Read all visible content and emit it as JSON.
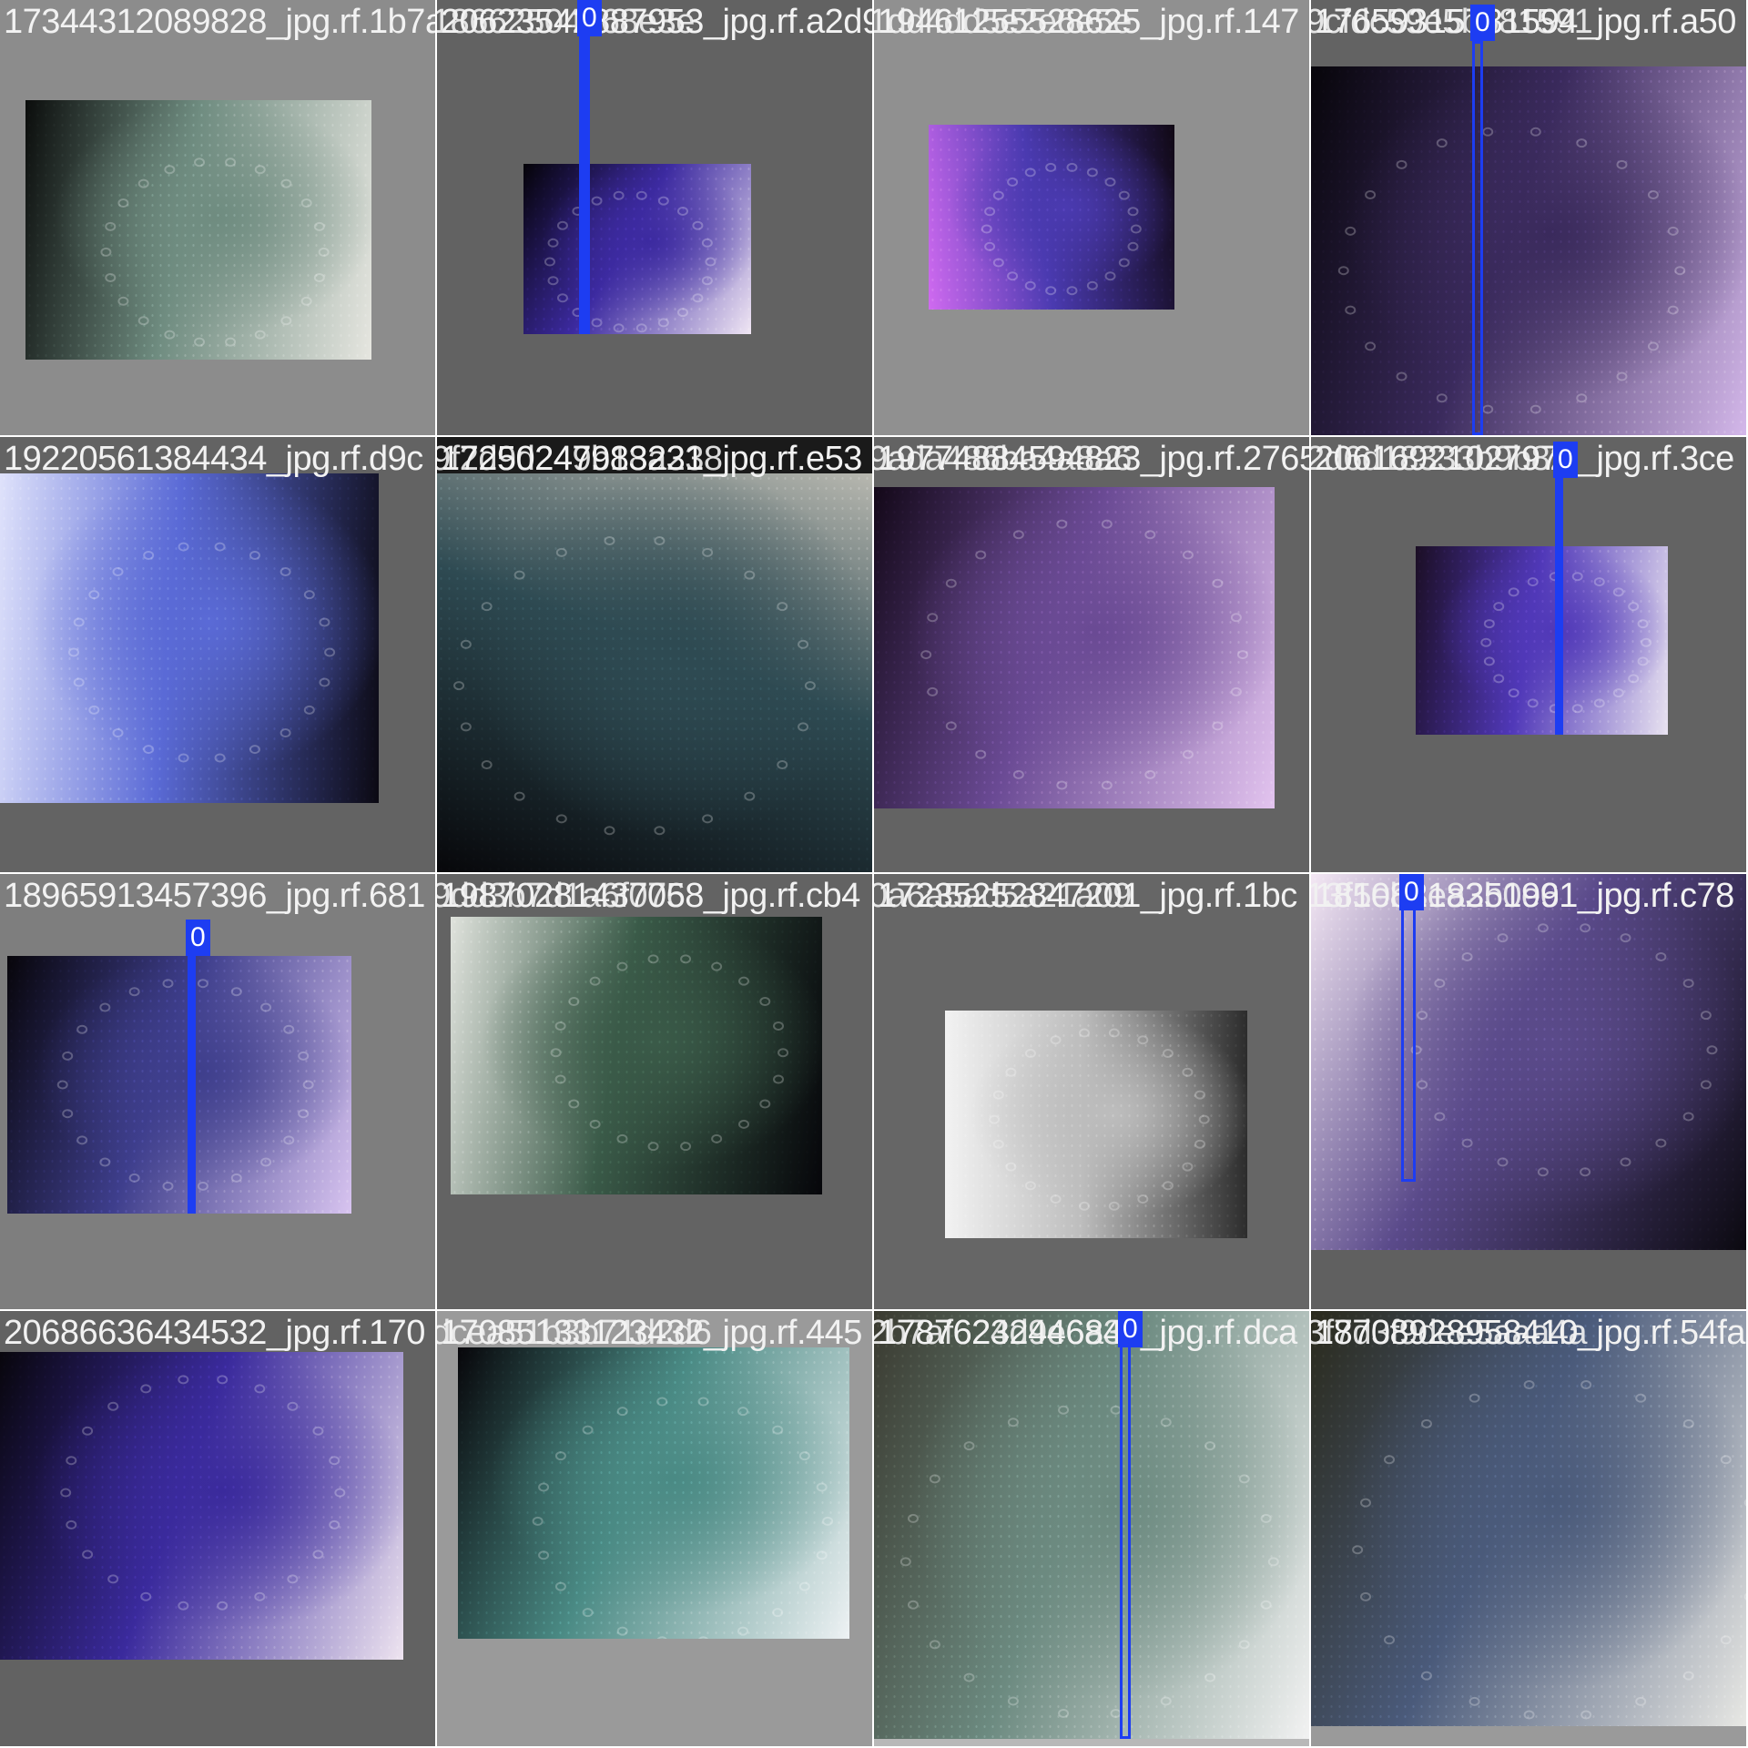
{
  "grid": {
    "columns": 4,
    "rows": 4,
    "tiles": [
      {
        "filename": "17344312089828_jpg.rf.1b7a",
        "overlay_filename": "",
        "background": "#8c8c8c",
        "palette": [
          "#0b0d0c",
          "#6f8c80",
          "#e6e6e0"
        ],
        "detections": []
      },
      {
        "filename": "20623542887953_jpg.rf.a2d9",
        "overlay_filename": "18662504268e3e",
        "background": "#626262",
        "palette": [
          "#050308",
          "#3c2aa0",
          "#f0e6f4"
        ],
        "detections": [
          {
            "label": "0"
          }
        ]
      },
      {
        "filename": "19461255528625_jpg.rf.147",
        "overlay_filename": "1dd4dd5e2e6e5e",
        "background": "#909090",
        "palette": [
          "#d06af0",
          "#4a3ab0",
          "#100814"
        ],
        "detections": []
      },
      {
        "filename": "17659315781594_jpg.rf.a50",
        "overlay_filename": "9cfdc59e5b581591",
        "background": "#636363",
        "palette": [
          "#07050a",
          "#3a2a5c",
          "#d4b8ea"
        ],
        "detections": [
          {
            "label": "0"
          }
        ]
      },
      {
        "filename": "19220561384434_jpg.rf.d9c",
        "overlay_filename": "",
        "background": "#636363",
        "palette": [
          "#dfe2fb",
          "#5a6ad6",
          "#0b0912"
        ],
        "detections": []
      },
      {
        "filename": "17250247983231_jpg.rf.e53",
        "overlay_filename": "9f2d9d249b18a238",
        "background": "#1a1a1a",
        "palette": [
          "#b8b8b0",
          "#2e4a52",
          "#07070a"
        ],
        "detections": []
      },
      {
        "filename": "19774884594823_jpg.rf.2765",
        "overlay_filename": "9ada486ba4a8a6",
        "background": "#636363",
        "palette": [
          "#130818",
          "#6a4a94",
          "#e3c4ef"
        ],
        "detections": []
      },
      {
        "filename": "20616921027973_jpg.rf.3ce",
        "overlay_filename": "2d6d18333b9b82",
        "background": "#636363",
        "palette": [
          "#1b0e24",
          "#5038b8",
          "#e8e2f0"
        ],
        "detections": [
          {
            "label": "0"
          }
        ]
      },
      {
        "filename": "18965913457396_jpg.rf.681",
        "overlay_filename": "",
        "background": "#7e7e7e",
        "palette": [
          "#07050a",
          "#3e3e8c",
          "#d8c4f0"
        ],
        "detections": [
          {
            "label": "0"
          }
        ]
      },
      {
        "filename": "19870281437058_jpg.rf.cb4",
        "overlay_filename": "9dd3b7d1a6f076",
        "background": "#636363",
        "palette": [
          "#dfe2dc",
          "#3a5a48",
          "#06060a"
        ],
        "detections": []
      },
      {
        "filename": "17235252847201_jpg.rf.1bc",
        "overlay_filename": "0a6a5ad5a21a09",
        "background": "#666666",
        "palette": [
          "#f2f2f2",
          "#bdbdbd",
          "#2c2c2c"
        ],
        "detections": []
      },
      {
        "filename": "18108218351991_jpg.rf.c78",
        "overlay_filename": "13f5eb3ea2b0e6",
        "background": "#606060",
        "palette": [
          "#f4e8f4",
          "#5a4a8a",
          "#0b0910"
        ],
        "detections": [
          {
            "label": "0"
          }
        ]
      },
      {
        "filename": "20686636434532_jpg.rf.170",
        "overlay_filename": "",
        "background": "#626262",
        "palette": [
          "#08060c",
          "#3a2a9c",
          "#eee4f0"
        ],
        "detections": []
      },
      {
        "filename": "17085133123432_jpg.rf.445",
        "overlay_filename": "dcea51b3b71d2d6",
        "background": "#9a9a9a",
        "palette": [
          "#07060a",
          "#4a8a84",
          "#eef2f4"
        ],
        "detections": []
      },
      {
        "filename": "17876232446841_jpg.rf.dca",
        "overlay_filename": "2b7af624d9e6a31",
        "background": "#b8b8b8",
        "palette": [
          "#3a3a30",
          "#6c8a80",
          "#f2f2f2"
        ],
        "detections": [
          {
            "label": "0"
          }
        ]
      },
      {
        "filename": "18708928958410_jpg.rf.54fa",
        "overlay_filename": "3f7d3f9dee5aaa4a",
        "background": "#9a9a9a",
        "palette": [
          "#2a2a1c",
          "#4a5a7a",
          "#e8e8e4"
        ],
        "detections": []
      }
    ]
  }
}
